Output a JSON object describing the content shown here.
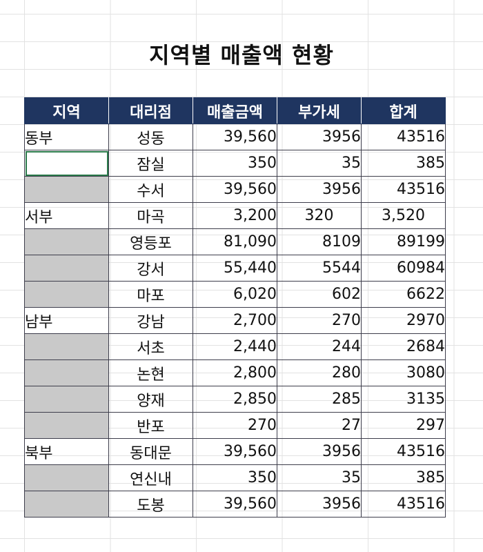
{
  "title": "지역별 매출액 현황",
  "headers": [
    "지역",
    "대리점",
    "매출금액",
    "부가세",
    "합계"
  ],
  "rows": [
    {
      "region": "동부",
      "branch": "성동",
      "sales": "39,560",
      "vat": "3956",
      "total": "43516"
    },
    {
      "region": "",
      "branch": "잠실",
      "sales": "350",
      "vat": "35",
      "total": "385"
    },
    {
      "region": "",
      "branch": "수서",
      "sales": "39,560",
      "vat": "3956",
      "total": "43516"
    },
    {
      "region": "서부",
      "branch": "마곡",
      "sales": "3,200",
      "vat": "320",
      "total": "3,520"
    },
    {
      "region": "",
      "branch": "영등포",
      "sales": "81,090",
      "vat": "8109",
      "total": "89199"
    },
    {
      "region": "",
      "branch": "강서",
      "sales": "55,440",
      "vat": "5544",
      "total": "60984"
    },
    {
      "region": "",
      "branch": "마포",
      "sales": "6,020",
      "vat": "602",
      "total": "6622"
    },
    {
      "region": "남부",
      "branch": "강남",
      "sales": "2,700",
      "vat": "270",
      "total": "2970"
    },
    {
      "region": "",
      "branch": "서초",
      "sales": "2,440",
      "vat": "244",
      "total": "2684"
    },
    {
      "region": "",
      "branch": "논현",
      "sales": "2,800",
      "vat": "280",
      "total": "3080"
    },
    {
      "region": "",
      "branch": "양재",
      "sales": "2,850",
      "vat": "285",
      "total": "3135"
    },
    {
      "region": "",
      "branch": "반포",
      "sales": "270",
      "vat": "27",
      "total": "297"
    },
    {
      "region": "북부",
      "branch": "동대문",
      "sales": "39,560",
      "vat": "3956",
      "total": "43516"
    },
    {
      "region": "",
      "branch": "연신내",
      "sales": "350",
      "vat": "35",
      "total": "385"
    },
    {
      "region": "",
      "branch": "도봉",
      "sales": "39,560",
      "vat": "3956",
      "total": "43516"
    }
  ],
  "colors": {
    "header_bg": "#1f3560",
    "header_text": "#ffffff",
    "empty_cell": "#c9c9c9",
    "selection": "#2a7a4a"
  }
}
